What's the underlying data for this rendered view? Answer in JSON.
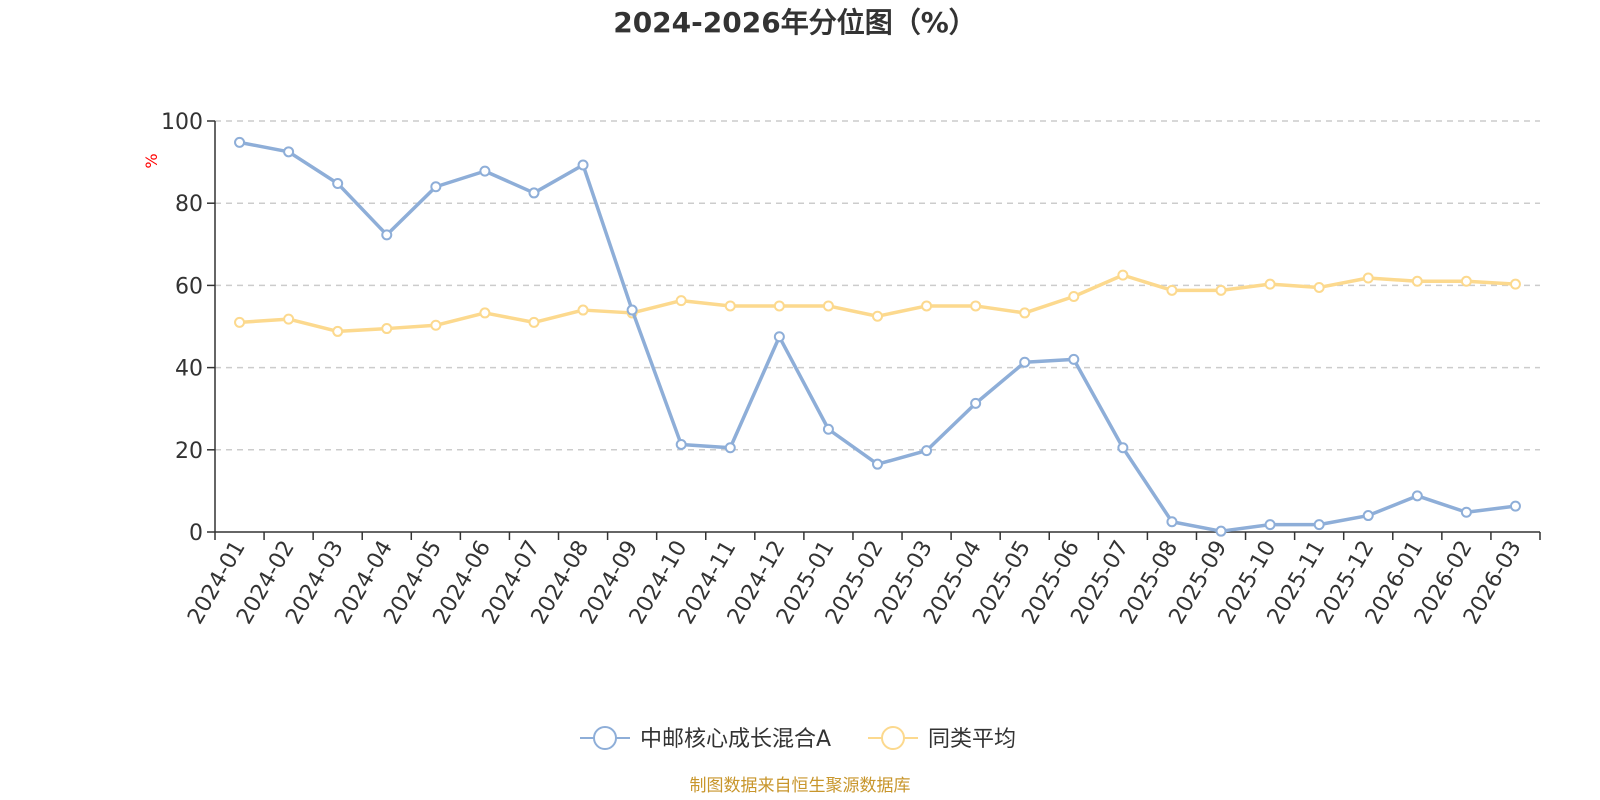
{
  "chart_data": {
    "type": "line",
    "title": "2024-2026年分位图（%）",
    "ylabel": "%",
    "xlabel": "",
    "ylim": [
      0,
      100
    ],
    "yticks": [
      0,
      20,
      40,
      60,
      80,
      100
    ],
    "grid": true,
    "legend_position": "bottom-center",
    "categories": [
      "2024-01",
      "2024-02",
      "2024-03",
      "2024-04",
      "2024-05",
      "2024-06",
      "2024-07",
      "2024-08",
      "2024-09",
      "2024-10",
      "2024-11",
      "2024-12",
      "2025-01",
      "2025-02",
      "2025-03",
      "2025-04",
      "2025-05",
      "2025-06",
      "2025-07",
      "2025-08",
      "2025-09",
      "2025-10",
      "2025-11",
      "2025-12",
      "2026-01",
      "2026-02",
      "2026-03"
    ],
    "series": [
      {
        "name": "中邮核心成长混合A",
        "color": "#8eaed8",
        "values": [
          94.8,
          92.5,
          84.8,
          72.3,
          84.0,
          87.8,
          82.5,
          89.3,
          54.0,
          21.3,
          20.5,
          47.5,
          25.0,
          16.5,
          19.8,
          31.3,
          41.3,
          42.0,
          20.5,
          2.5,
          0.2,
          1.8,
          1.8,
          4.0,
          8.8,
          4.8,
          6.3
        ]
      },
      {
        "name": "同类平均",
        "color": "#fcd98e",
        "values": [
          51.0,
          51.8,
          48.8,
          49.5,
          50.3,
          53.3,
          51.0,
          54.0,
          53.3,
          56.3,
          55.0,
          55.0,
          55.0,
          52.5,
          55.0,
          55.0,
          53.3,
          57.3,
          62.5,
          58.8,
          58.8,
          60.3,
          59.5,
          61.8,
          61.0,
          61.0,
          60.3
        ]
      }
    ]
  },
  "source_text": "制图数据来自恒生聚源数据库"
}
